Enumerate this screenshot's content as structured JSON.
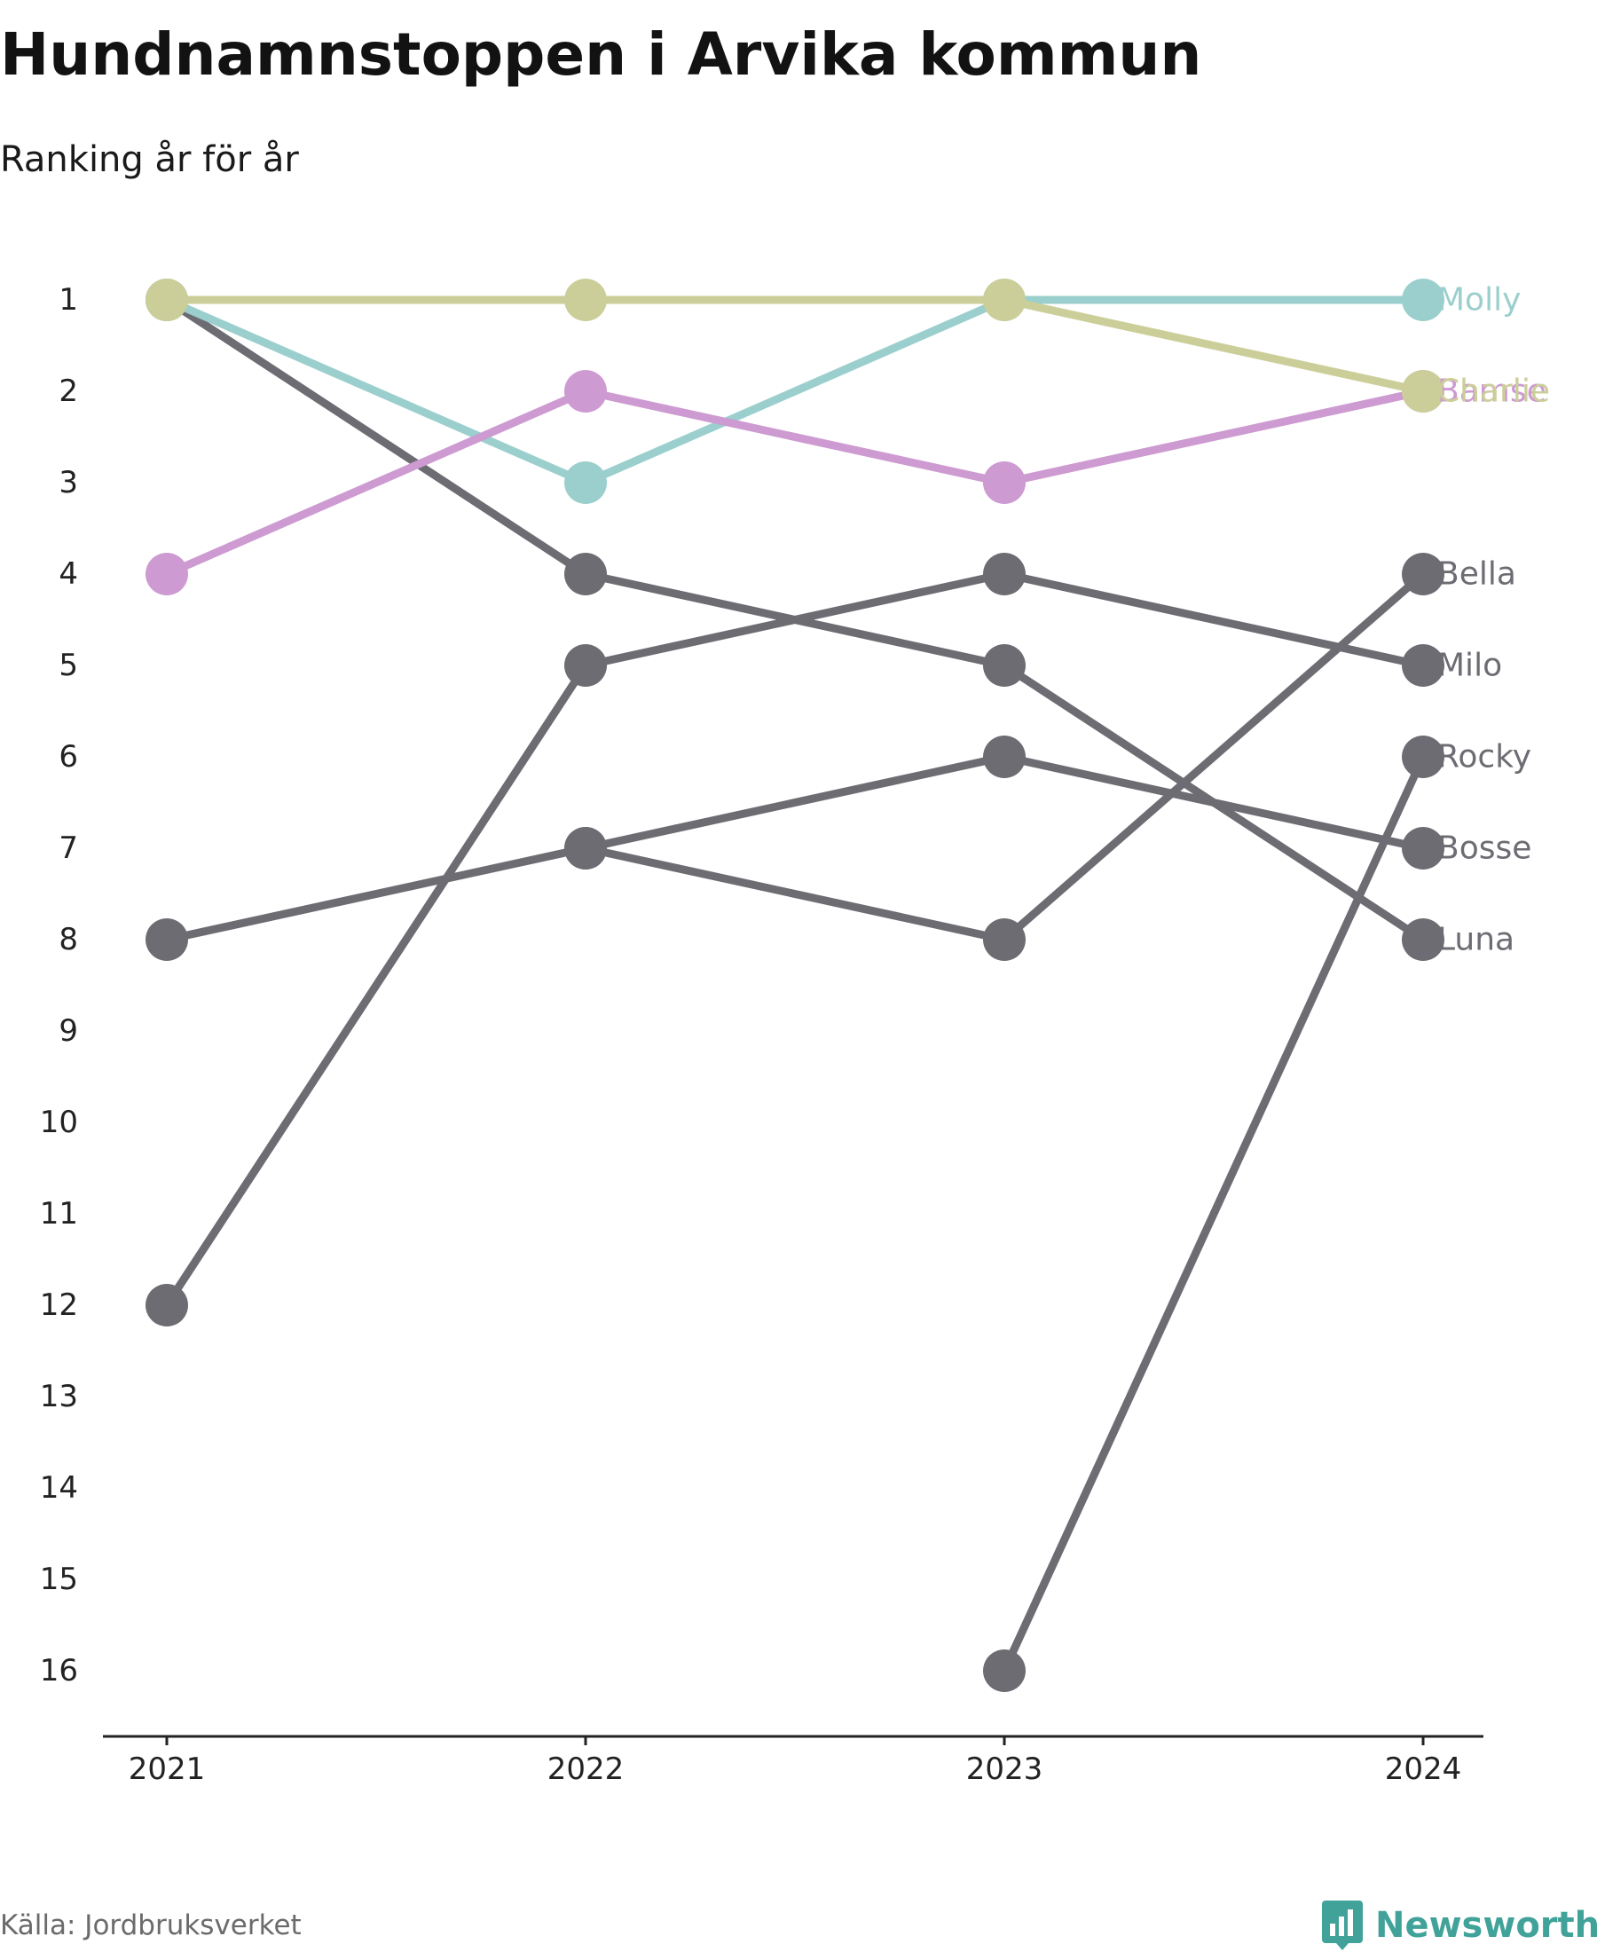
{
  "title": "Hundnamnstoppen i Arvika kommun",
  "subtitle": "Ranking år för år",
  "source": "Källa: Jordbruksverket",
  "brand": {
    "name": "Newsworthy",
    "icon": "bar-chart-logo-icon"
  },
  "colors": {
    "molly": "#9bcfcd",
    "bamse": "#cd9ad1",
    "charlie": "#ccce9a",
    "gray": "#6d6c73",
    "axis": "#222222",
    "text": "#222222"
  },
  "chart_data": {
    "type": "line",
    "subtype": "bump",
    "title": "Hundnamnstoppen i Arvika kommun",
    "subtitle": "Ranking år för år",
    "xlabel": "",
    "ylabel": "",
    "x": [
      "2021",
      "2022",
      "2023",
      "2024"
    ],
    "y_ticks": [
      1,
      2,
      3,
      4,
      5,
      6,
      7,
      8,
      9,
      10,
      11,
      12,
      13,
      14,
      15,
      16
    ],
    "ylim": [
      1,
      16
    ],
    "y_inverted": true,
    "grid": false,
    "legend": "direct labels at right end of lines",
    "series": [
      {
        "name": "Molly",
        "values": [
          1,
          3,
          1,
          1
        ],
        "color": "#9bcfcd"
      },
      {
        "name": "Bamse",
        "values": [
          4,
          2,
          3,
          2
        ],
        "color": "#cd9ad1"
      },
      {
        "name": "Charlie",
        "values": [
          1,
          1,
          1,
          2
        ],
        "color": "#ccce9a"
      },
      {
        "name": "Bella",
        "values": [
          null,
          7,
          8,
          4
        ],
        "color": "#6d6c73"
      },
      {
        "name": "Milo",
        "values": [
          12,
          5,
          4,
          5
        ],
        "color": "#6d6c73"
      },
      {
        "name": "Rocky",
        "values": [
          null,
          null,
          16,
          6
        ],
        "color": "#6d6c73"
      },
      {
        "name": "Bosse",
        "values": [
          8,
          7,
          6,
          7
        ],
        "color": "#6d6c73"
      },
      {
        "name": "Luna",
        "values": [
          1,
          4,
          5,
          8
        ],
        "color": "#6d6c73"
      }
    ]
  }
}
